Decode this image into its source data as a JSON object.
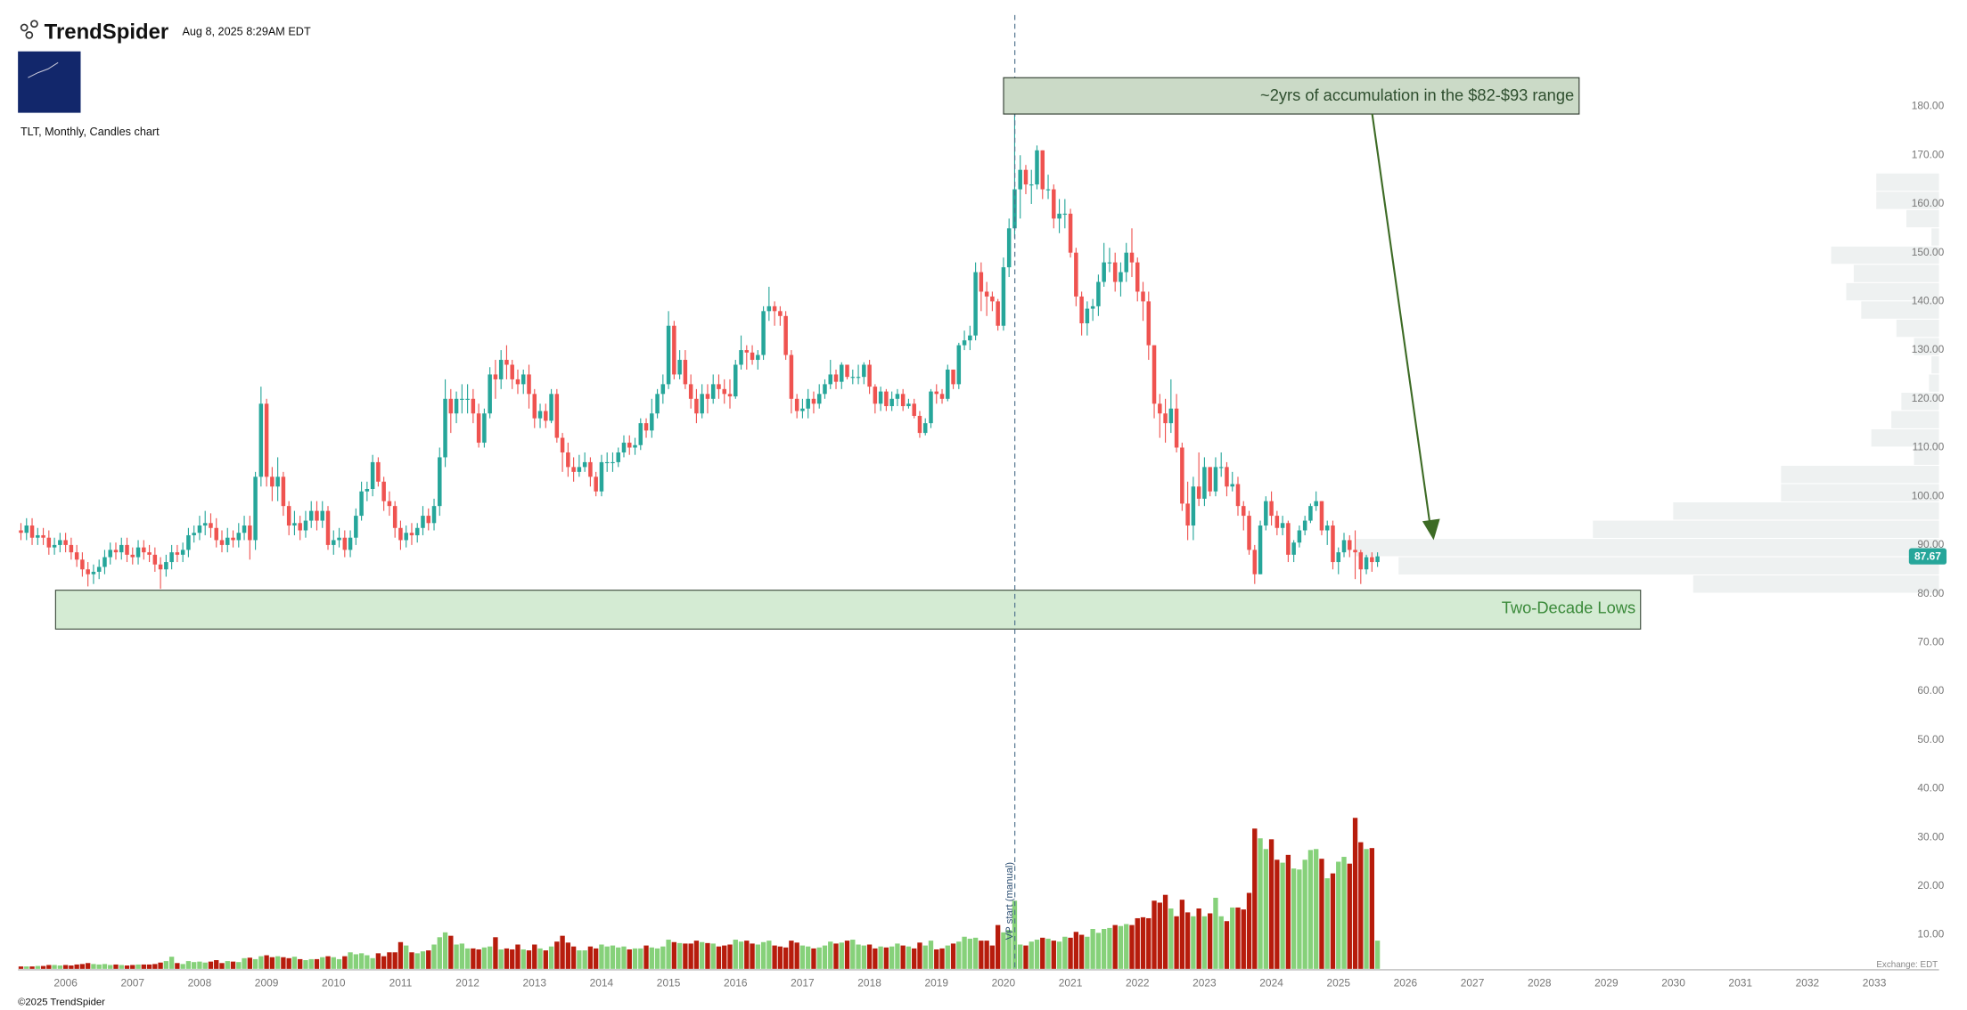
{
  "header": {
    "brand": "TrendSpider",
    "timestamp": "Aug 8, 2025 8:29AM EDT",
    "chart_label": "TLT, Monthly, Candles chart"
  },
  "footer": {
    "copyright": "©2025 TrendSpider",
    "exchange": "Exchange: EDT"
  },
  "chart_data": {
    "type": "candlestick",
    "categories": [
      null,
      null,
      null,
      null,
      null,
      null,
      null,
      null,
      "2006",
      null,
      null,
      null,
      null,
      null,
      null,
      null,
      null,
      null,
      null,
      null,
      "2007",
      null,
      null,
      null,
      null,
      null,
      null,
      null,
      null,
      null,
      null,
      null,
      "2008",
      null,
      null,
      null,
      null,
      null,
      null,
      null,
      null,
      null,
      null,
      null,
      "2009",
      null,
      null,
      null,
      null,
      null,
      null,
      null,
      null,
      null,
      null,
      null,
      "2010",
      null,
      null,
      null,
      null,
      null,
      null,
      null,
      null,
      null,
      null,
      null,
      "2011",
      null,
      null,
      null,
      null,
      null,
      null,
      null,
      null,
      null,
      null,
      null,
      "2012",
      null,
      null,
      null,
      null,
      null,
      null,
      null,
      null,
      null,
      null,
      null,
      "2013",
      null,
      null,
      null,
      null,
      null,
      null,
      null,
      null,
      null,
      null,
      null,
      "2014",
      null,
      null,
      null,
      null,
      null,
      null,
      null,
      null,
      null,
      null,
      null,
      "2015",
      null,
      null,
      null,
      null,
      null,
      null,
      null,
      null,
      null,
      null,
      null,
      "2016",
      null,
      null,
      null,
      null,
      null,
      null,
      null,
      null,
      null,
      null,
      null,
      "2017",
      null,
      null,
      null,
      null,
      null,
      null,
      null,
      null,
      null,
      null,
      null,
      "2018",
      null,
      null,
      null,
      null,
      null,
      null,
      null,
      null,
      null,
      null,
      null,
      "2019",
      null,
      null,
      null,
      null,
      null,
      null,
      null,
      null,
      null,
      null,
      null,
      "2020",
      null,
      null,
      null,
      null,
      null,
      null,
      null,
      null,
      null,
      null,
      null,
      "2021",
      null,
      null,
      null,
      null,
      null,
      null,
      null,
      null,
      null,
      null,
      null,
      "2022",
      null,
      null,
      null,
      null,
      null,
      null,
      null,
      null,
      null,
      null,
      null,
      "2023",
      null,
      null,
      null,
      null,
      null,
      null,
      null,
      null,
      null,
      null,
      null,
      "2024",
      null,
      null,
      null,
      null,
      null,
      null,
      null,
      null,
      null,
      null,
      null,
      "2025",
      null,
      null,
      null,
      null,
      null,
      null,
      null
    ],
    "future_years": [
      "2026",
      "2027",
      "2028",
      "2029",
      "2030",
      "2031",
      "2032",
      "2033"
    ],
    "open": [
      93,
      92.5,
      94,
      91.5,
      92,
      91.5,
      89.5,
      90,
      91,
      90,
      88.5,
      87,
      85,
      84,
      84.5,
      85.5,
      87.5,
      89,
      88.5,
      90,
      88,
      87.5,
      89.5,
      88.5,
      88,
      86,
      85,
      86.5,
      88.5,
      88,
      89,
      92,
      92.5,
      94,
      94.5,
      93.5,
      91,
      90,
      91.5,
      91,
      92.5,
      94,
      91,
      104,
      119,
      104,
      102,
      104,
      98,
      94,
      94.5,
      93,
      95,
      97,
      95,
      97,
      90,
      91,
      91.5,
      89,
      91.5,
      96,
      101,
      101.5,
      107,
      103,
      99,
      98,
      93.5,
      91,
      92.5,
      92,
      93.5,
      96,
      94.5,
      98,
      108,
      120,
      117,
      120,
      120,
      120,
      117,
      111,
      117,
      125,
      124,
      128,
      127,
      124,
      123,
      125,
      121,
      116,
      117.5,
      115.5,
      121,
      112,
      109,
      106,
      105,
      106,
      107,
      104,
      101,
      107,
      107,
      107,
      109,
      111,
      110,
      110.5,
      115,
      113.5,
      117,
      121,
      123,
      135,
      125,
      128,
      123,
      120,
      117,
      121,
      120,
      123,
      122,
      121,
      120.5,
      127,
      130,
      129.5,
      128,
      129,
      138,
      139,
      138,
      137,
      129,
      120,
      117.5,
      118,
      120,
      119,
      121,
      123,
      125,
      123.5,
      127,
      124.5,
      124.5,
      124.5,
      127,
      122.5,
      119,
      121.5,
      118.5,
      120,
      121,
      118.5,
      119,
      116.5,
      113,
      115,
      121.5,
      121,
      120,
      126,
      123,
      131,
      132,
      133,
      146,
      142,
      141,
      140,
      135,
      147,
      155,
      163,
      167,
      164,
      164,
      171,
      163,
      163,
      157,
      158,
      158,
      150,
      141,
      135.5,
      138.5,
      139,
      144,
      148,
      148,
      144,
      146,
      150,
      148,
      142,
      140,
      131,
      119,
      117,
      115,
      118,
      110,
      98.5,
      94,
      102,
      99.5,
      106,
      101,
      106,
      106,
      102,
      102.5,
      98,
      96,
      89,
      84,
      94,
      99,
      96,
      93.5,
      94.5,
      88,
      90.5,
      93,
      95,
      98,
      99,
      93,
      94,
      86.5,
      88.5,
      91,
      89,
      88.5,
      85,
      87.5,
      86.5
    ],
    "high": [
      94.5,
      95.5,
      95.5,
      93.5,
      93.5,
      93,
      91.5,
      92.5,
      92.5,
      91.5,
      90,
      88.5,
      86.5,
      86,
      87,
      89,
      90.5,
      90.5,
      91.5,
      91.5,
      89.5,
      91,
      91,
      90,
      89.5,
      87.5,
      88,
      90,
      90,
      90.5,
      93.5,
      94,
      96,
      97,
      96.5,
      95.5,
      93,
      93.5,
      93,
      94.5,
      96,
      96,
      105,
      122.5,
      120,
      106,
      108,
      105,
      99,
      97,
      96,
      97,
      99,
      99,
      99,
      98,
      93,
      93.5,
      93,
      93,
      97.5,
      103,
      103,
      108.5,
      108,
      104,
      101,
      99,
      95,
      94,
      94.5,
      94.5,
      98,
      97.5,
      99.5,
      110,
      124,
      122,
      121.5,
      123,
      123,
      122,
      119,
      118,
      126.5,
      128,
      130,
      131,
      128,
      126,
      126,
      127,
      122,
      119,
      119,
      122,
      122,
      113,
      111,
      108,
      108.5,
      109,
      108,
      105,
      108.5,
      109,
      109,
      110,
      112.5,
      112.5,
      112,
      116,
      116,
      120,
      122,
      125,
      138,
      136,
      130,
      130,
      125,
      122,
      123,
      123,
      125,
      125,
      124,
      124,
      128,
      133,
      131,
      131,
      130,
      139,
      143,
      140,
      139,
      138,
      130,
      121,
      120,
      122,
      121.5,
      123,
      124,
      128,
      126,
      127.5,
      127,
      126,
      127,
      127.5,
      128,
      123,
      122.5,
      122,
      121.5,
      122,
      122,
      120,
      120,
      117.5,
      116,
      122,
      123,
      122,
      127,
      126,
      131.5,
      134,
      135,
      148,
      148,
      144,
      142,
      140.5,
      149,
      157,
      179,
      170,
      168,
      167,
      172,
      171,
      166,
      164,
      161,
      161,
      159,
      151,
      142,
      140,
      140.5,
      145.5,
      152,
      151,
      150,
      148,
      152,
      155,
      149,
      144,
      142,
      131,
      121,
      120,
      124,
      121,
      111,
      103,
      104,
      109,
      108,
      106,
      108,
      109,
      107,
      105,
      104,
      99,
      97,
      90,
      95,
      100,
      101,
      97,
      96,
      95,
      91,
      94,
      96,
      98.5,
      101,
      99,
      95,
      95,
      89.5,
      92.5,
      92,
      93,
      89,
      88,
      88.5,
      88.5
    ],
    "low": [
      91,
      91,
      90,
      90,
      90,
      88,
      88,
      88.5,
      88.5,
      87,
      85.5,
      83.5,
      81.5,
      82,
      83,
      84,
      86,
      87,
      87,
      86.5,
      86,
      86,
      87,
      86.5,
      84.5,
      81,
      83.5,
      85,
      86.5,
      86.5,
      87.5,
      90.5,
      91,
      92,
      91.5,
      89.5,
      88.5,
      88.5,
      89.5,
      89.5,
      91,
      87,
      89,
      102,
      102,
      99,
      99,
      96,
      92,
      92,
      91,
      91.5,
      93.5,
      93,
      93.5,
      89,
      88,
      89.5,
      87.5,
      87.5,
      90,
      95,
      99,
      100,
      102,
      97,
      96,
      91.5,
      89,
      89.5,
      90,
      90.5,
      92,
      93,
      93,
      96,
      106,
      113,
      115,
      117,
      117,
      115,
      110,
      110,
      116,
      120,
      122,
      124,
      122,
      121,
      121,
      118,
      114,
      114,
      114,
      115,
      111,
      105,
      104,
      103,
      104,
      105,
      102,
      100,
      100,
      105,
      105,
      106,
      108,
      108.5,
      108.5,
      109.5,
      112,
      112,
      116,
      119,
      122,
      124,
      124,
      122,
      118,
      115,
      116,
      117,
      119,
      120,
      119,
      118,
      120,
      126,
      126,
      127,
      126,
      128,
      136,
      135,
      135,
      128,
      117,
      116,
      116,
      116,
      117,
      118,
      120,
      122,
      122,
      122,
      124,
      123,
      123,
      123,
      121,
      117,
      117.5,
      117.5,
      117.5,
      118.5,
      117.5,
      118,
      116,
      112,
      112.5,
      114,
      119,
      119,
      119.5,
      122,
      122,
      130,
      130,
      132,
      138,
      137,
      138,
      134,
      134,
      145,
      153,
      157,
      162,
      160,
      163,
      161,
      161,
      155,
      154,
      155,
      149,
      139,
      133,
      133,
      136,
      137,
      143,
      146,
      142,
      141,
      144,
      145,
      140,
      136,
      128,
      116,
      112,
      111,
      113,
      109,
      97,
      91,
      91,
      98,
      98,
      100,
      100,
      104,
      100,
      101,
      96,
      93,
      88,
      82,
      84,
      93,
      94,
      92,
      92,
      86.5,
      86.5,
      89.5,
      92,
      94.5,
      97,
      92,
      90,
      85,
      84,
      87.5,
      87.5,
      83,
      82,
      84,
      84.5,
      85.5
    ],
    "close": [
      92.5,
      94,
      91.5,
      92,
      91.5,
      89.5,
      90,
      91,
      90,
      88.5,
      87,
      85,
      84,
      84.5,
      85.5,
      87.5,
      89,
      88.5,
      90,
      88,
      87.5,
      89.5,
      88.5,
      88,
      86,
      85,
      86.5,
      88.5,
      88,
      89,
      92,
      92.5,
      94,
      94.5,
      93.5,
      91,
      90,
      91.5,
      91,
      92.5,
      94,
      91,
      104,
      119,
      104,
      102,
      104,
      98,
      94,
      94.5,
      93,
      95,
      97,
      95,
      97,
      90,
      91,
      91.5,
      89,
      91.5,
      96,
      101,
      101.5,
      107,
      103,
      99,
      98,
      93.5,
      91,
      92.5,
      92,
      93.5,
      96,
      94.5,
      98,
      108,
      120,
      117,
      120,
      120,
      120,
      117,
      111,
      117,
      125,
      124,
      128,
      127,
      124,
      123,
      125,
      121,
      116,
      117.5,
      115.5,
      121,
      112,
      109,
      106,
      105,
      106,
      107,
      104,
      101,
      107,
      107,
      107,
      109,
      111,
      110,
      110.5,
      115,
      113.5,
      117,
      121,
      123,
      135,
      125,
      128,
      123,
      120,
      117,
      121,
      120,
      123,
      122,
      121,
      120.5,
      127,
      130,
      129.5,
      128,
      129,
      138,
      139,
      138,
      137,
      129,
      120,
      117.5,
      118,
      120,
      119,
      121,
      123,
      125,
      123.5,
      127,
      124.5,
      124.5,
      124.5,
      127,
      122.5,
      119,
      121.5,
      118.5,
      120,
      121,
      118.5,
      119,
      116.5,
      113,
      115,
      121.5,
      121,
      120,
      126,
      123,
      131,
      132,
      133,
      146,
      142,
      141,
      140,
      135,
      147,
      155,
      163,
      167,
      164,
      164,
      171,
      163,
      163,
      157,
      158,
      158,
      150,
      141,
      135.5,
      138.5,
      139,
      144,
      148,
      148,
      144,
      146,
      150,
      148,
      142,
      140,
      131,
      119,
      117,
      115,
      118,
      110,
      98.5,
      94,
      102,
      99.5,
      106,
      101,
      106,
      106,
      102,
      102.5,
      98,
      96,
      89,
      84,
      94,
      99,
      96,
      93.5,
      94.5,
      88,
      90.5,
      93,
      95,
      98,
      99,
      93,
      94,
      86.5,
      88.5,
      91,
      89,
      88.5,
      85,
      87.5,
      86.5,
      87.67
    ],
    "volume": [
      0.5,
      0.5,
      0.5,
      0.6,
      0.6,
      0.8,
      0.8,
      0.7,
      0.8,
      0.7,
      0.9,
      1,
      1.2,
      1,
      0.9,
      1,
      0.8,
      0.9,
      0.8,
      0.7,
      0.8,
      0.9,
      0.9,
      0.9,
      1,
      1.3,
      1.6,
      2.5,
      1.2,
      1,
      1.6,
      1.4,
      1.5,
      1.3,
      1.5,
      1.8,
      1.2,
      1.6,
      1.5,
      1.4,
      2.2,
      2.3,
      2,
      2.6,
      2.8,
      2.4,
      2.6,
      2.4,
      2.2,
      2.5,
      2,
      1.8,
      2,
      2,
      2.4,
      2.6,
      2.4,
      2,
      2.6,
      3.4,
      3,
      3.2,
      2.8,
      2.2,
      3.2,
      2.6,
      3.4,
      3.4,
      5.5,
      4.8,
      3.4,
      3.2,
      3.6,
      3.8,
      5,
      6.5,
      7.5,
      6.8,
      5,
      5.2,
      4.2,
      4.2,
      4,
      4.4,
      4.6,
      6.5,
      4,
      4.2,
      4,
      5,
      4,
      3.8,
      5,
      4.2,
      3.8,
      4.6,
      5.6,
      6.8,
      5.4,
      4.6,
      3.8,
      3.8,
      4.6,
      4.2,
      5,
      4.6,
      4.8,
      4.4,
      4.6,
      4,
      4.2,
      4.2,
      4.8,
      4.4,
      4.2,
      4.6,
      6,
      5.5,
      5.3,
      5.2,
      5.2,
      5.8,
      5.5,
      5.3,
      5.2,
      4.6,
      4.8,
      5,
      6,
      5.6,
      5.8,
      5.2,
      5,
      5.5,
      5.8,
      4.8,
      4.6,
      4.4,
      5.8,
      5.4,
      4.8,
      4.6,
      4.2,
      4.4,
      4.8,
      5.6,
      5.2,
      5.4,
      5.8,
      6,
      5,
      4.8,
      5,
      4.2,
      4.6,
      4.4,
      4.6,
      5.2,
      4.8,
      4.6,
      4.2,
      5.4,
      4.8,
      5.8,
      4,
      4.2,
      4.8,
      5.2,
      5.6,
      6.6,
      6.2,
      6.4,
      5.8,
      5.8,
      4.8,
      9,
      7.5,
      8,
      14,
      5,
      4.8,
      5.6,
      6,
      6.4,
      6.2,
      5.8,
      5.6,
      6.6,
      6.4,
      7.6,
      7,
      6.6,
      8.2,
      7.4,
      8.2,
      8.4,
      9,
      8.8,
      9.2,
      9,
      10.4,
      10.6,
      10.4,
      14,
      13.6,
      15.2,
      12.4,
      10.8,
      14.2,
      11.6,
      10.8,
      12.4,
      10.8,
      11.4,
      14.6,
      10.8,
      9.8,
      12.6,
      12.6,
      12.2,
      15.6,
      28.8,
      26.8,
      24.6,
      26.6,
      22.4,
      21.8,
      23.4,
      20.6,
      20.4,
      22.4,
      24.4,
      24.6,
      22.6,
      18.6,
      19.6,
      22,
      23,
      21.6,
      31,
      26,
      24.6,
      24.8,
      5.8
    ],
    "up_color": "#26a69a",
    "down_color": "#ef5350",
    "volume_up_color": "#86d17a",
    "volume_down_color": "#b71c0c",
    "ylim": [
      3,
      199
    ],
    "yticks": [
      {
        "value": 10,
        "label": "10.00"
      },
      {
        "value": 20,
        "label": "20.00"
      },
      {
        "value": 30,
        "label": "30.00"
      },
      {
        "value": 40,
        "label": "40.00"
      },
      {
        "value": 50,
        "label": "50.00"
      },
      {
        "value": 60,
        "label": "60.00"
      },
      {
        "value": 70,
        "label": "70.00"
      },
      {
        "value": 80,
        "label": "80.00"
      },
      {
        "value": 90,
        "label": "90.00"
      },
      {
        "value": 100,
        "label": "100.00"
      },
      {
        "value": 110,
        "label": "110.00"
      },
      {
        "value": 120,
        "label": "120.00"
      },
      {
        "value": 130,
        "label": "130.00"
      },
      {
        "value": 140,
        "label": "140.00"
      },
      {
        "value": 150,
        "label": "150.00"
      },
      {
        "value": 160,
        "label": "160.00"
      },
      {
        "value": 170,
        "label": "170.00"
      },
      {
        "value": 180,
        "label": "180.00"
      }
    ],
    "grid": false,
    "volume_profile": {
      "color": "#eef1f1",
      "bins": [
        80,
        83.75,
        87.5,
        91.25,
        95,
        98.75,
        102.5,
        106.25,
        110,
        113.75,
        117.5,
        121.25,
        125,
        128.75,
        132.5,
        136.25,
        140,
        143.75,
        147.5,
        151.25,
        155,
        158.75,
        162.5,
        166.25
      ],
      "values": [
        196,
        431,
        466,
        276,
        212,
        126,
        126,
        20,
        54,
        38,
        30,
        8,
        6,
        20,
        34,
        62,
        74,
        68,
        86,
        6,
        26,
        50,
        50
      ]
    },
    "annotations": {
      "accumulation": "~2yrs of accumulation in the $82-$93 range",
      "lows": "Two-Decade Lows",
      "vp_start": "VP start (manual)"
    }
  }
}
